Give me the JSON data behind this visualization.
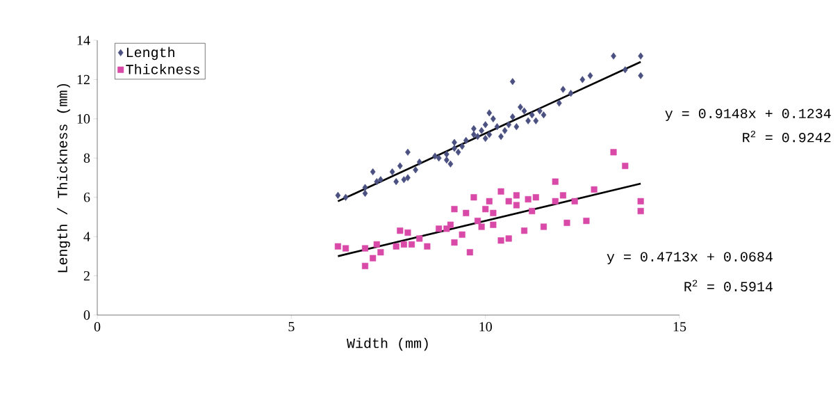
{
  "chart_data": {
    "type": "scatter",
    "xlabel": "Width (mm)",
    "ylabel": "Length / Thickness (mm)",
    "xlim": [
      0,
      15
    ],
    "ylim": [
      0,
      14
    ],
    "xticks": [
      0,
      5,
      10,
      15
    ],
    "yticks": [
      0,
      2,
      4,
      6,
      8,
      10,
      12,
      14
    ],
    "grid": false,
    "legend": "top left",
    "series": [
      {
        "name": "Length",
        "color": "#4a5080",
        "marker": "diamond",
        "x": [
          6.2,
          6.4,
          6.9,
          6.9,
          7.1,
          7.2,
          7.3,
          7.6,
          7.7,
          7.8,
          7.9,
          8.0,
          8.0,
          8.2,
          8.3,
          8.7,
          8.8,
          9.0,
          9.0,
          9.1,
          9.2,
          9.2,
          9.3,
          9.4,
          9.5,
          9.7,
          9.7,
          9.8,
          9.9,
          10.0,
          10.0,
          10.1,
          10.1,
          10.2,
          10.3,
          10.4,
          10.5,
          10.6,
          10.7,
          10.7,
          10.8,
          10.9,
          11.0,
          11.1,
          11.2,
          11.3,
          11.4,
          11.5,
          11.9,
          12.0,
          12.2,
          12.5,
          12.7,
          13.3,
          13.6,
          14.0,
          14.0
        ],
        "values": [
          6.1,
          6.0,
          6.2,
          6.5,
          7.3,
          6.8,
          6.9,
          7.3,
          6.8,
          7.6,
          6.9,
          8.3,
          7.0,
          7.4,
          7.8,
          8.1,
          8.0,
          8.2,
          7.9,
          7.7,
          8.5,
          8.8,
          8.3,
          8.6,
          8.9,
          9.2,
          9.5,
          9.1,
          9.4,
          9.7,
          9.0,
          10.3,
          9.2,
          10.0,
          9.6,
          9.1,
          9.4,
          9.7,
          10.1,
          11.9,
          9.6,
          10.6,
          10.4,
          9.9,
          10.2,
          9.9,
          10.4,
          10.2,
          10.8,
          11.5,
          11.3,
          12.0,
          12.2,
          13.2,
          12.5,
          13.2,
          12.2
        ]
      },
      {
        "name": "Thickness",
        "color": "#d94aa8",
        "marker": "square",
        "x": [
          6.2,
          6.4,
          6.9,
          6.9,
          7.1,
          7.2,
          7.3,
          7.7,
          7.8,
          7.9,
          8.0,
          8.1,
          8.3,
          8.5,
          8.8,
          9.0,
          9.1,
          9.2,
          9.2,
          9.4,
          9.5,
          9.6,
          9.7,
          9.8,
          9.9,
          10.0,
          10.1,
          10.2,
          10.2,
          10.4,
          10.4,
          10.6,
          10.6,
          10.8,
          10.8,
          11.0,
          11.1,
          11.2,
          11.3,
          11.5,
          11.8,
          11.8,
          12.0,
          12.1,
          12.3,
          12.6,
          12.8,
          13.3,
          13.6,
          14.0,
          14.0
        ],
        "values": [
          3.5,
          3.4,
          2.5,
          3.4,
          2.9,
          3.6,
          3.2,
          3.5,
          4.3,
          3.6,
          4.2,
          3.6,
          3.9,
          3.5,
          4.4,
          4.4,
          4.6,
          5.4,
          3.7,
          4.1,
          5.2,
          3.2,
          6.0,
          4.8,
          4.5,
          5.4,
          5.8,
          5.2,
          4.6,
          6.3,
          3.8,
          5.8,
          3.9,
          6.1,
          5.6,
          4.3,
          5.9,
          5.3,
          6.0,
          4.5,
          6.8,
          5.8,
          6.1,
          4.7,
          5.8,
          4.8,
          6.4,
          8.3,
          7.6,
          5.8,
          5.3
        ]
      },
      {
        "type": "line",
        "color": "#000000",
        "marker": "none",
        "line_style": "solid",
        "x": [
          6.2,
          14.0
        ],
        "values": [
          5.8,
          12.9
        ]
      },
      {
        "type": "line",
        "color": "#000000",
        "marker": "none",
        "line_style": "solid",
        "x": [
          6.2,
          14.0
        ],
        "values": [
          3.0,
          6.7
        ]
      }
    ],
    "annotations": [
      "y = 0.9148x + 0.1234",
      "R$^{2}$ = 0.9242",
      "y = 0.4713x + 0.0684",
      "R$^{2}$ = 0.5914"
    ]
  }
}
